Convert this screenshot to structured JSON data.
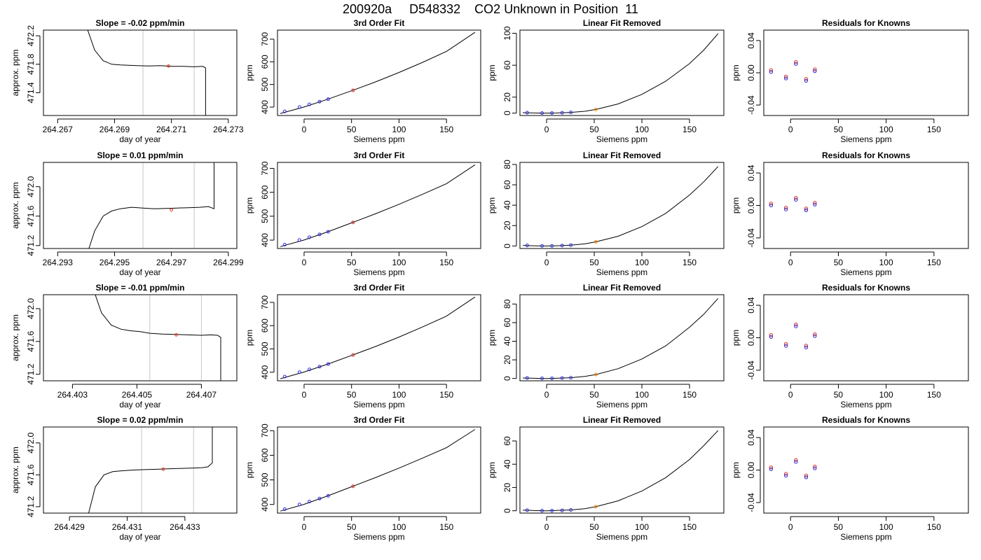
{
  "title": "200920a     D548332    CO2 Unknown in Position  11",
  "chart_data": [
    {
      "type": "line",
      "kind": "time",
      "row": 0,
      "title": "Slope =  -0.02  ppm/min",
      "xlabel": "day of year",
      "ylabel": "approx. ppm",
      "xlim": [
        264.2665,
        264.2733
      ],
      "ylim": [
        471.08,
        472.28
      ],
      "xticks": [
        264.267,
        264.269,
        264.271,
        264.273
      ],
      "xtick_labels": [
        "264.267",
        "264.269",
        "264.271",
        "264.273"
      ],
      "yticks": [
        471.4,
        471.8,
        472.2
      ],
      "ytick_labels": [
        "471.4",
        "471.8",
        "472.2"
      ],
      "vlines": [
        264.27,
        264.2718
      ],
      "red_marker": [
        264.2709,
        471.775
      ],
      "x": [
        264.26795,
        264.2683,
        264.2686,
        264.2689,
        264.2692,
        264.2695,
        264.2698,
        264.2702,
        264.2706,
        264.271,
        264.2714,
        264.2718,
        264.2721,
        264.2722,
        264.2722,
        264.2722
      ],
      "y": [
        472.4,
        472.0,
        471.85,
        471.8,
        471.79,
        471.785,
        471.78,
        471.775,
        471.78,
        471.77,
        471.77,
        471.765,
        471.77,
        471.75,
        471.4,
        471.05
      ]
    },
    {
      "type": "line",
      "kind": "fit3",
      "row": 0,
      "title": "3rd Order Fit",
      "xlabel": "Siemens ppm",
      "ylabel": "ppm",
      "xlim": [
        -28,
        186
      ],
      "ylim": [
        363,
        740
      ],
      "xticks": [
        0,
        50,
        100,
        150
      ],
      "xtick_labels": [
        "0",
        "50",
        "100",
        "150"
      ],
      "yticks": [
        400,
        500,
        600,
        700
      ],
      "ytick_labels": [
        "400",
        "500",
        "600",
        "700"
      ],
      "x": [
        -25,
        0,
        25,
        50,
        75,
        100,
        125,
        150,
        180
      ],
      "y": [
        372,
        400.5,
        435,
        472,
        511,
        553,
        598,
        646,
        730
      ],
      "knowns_x": [
        -20.4,
        -4.8,
        5.6,
        16.3,
        25.4
      ],
      "knowns_y": [
        381,
        400,
        412,
        424,
        435
      ],
      "unknown": [
        51.6,
        474
      ]
    },
    {
      "type": "line",
      "kind": "linrem",
      "row": 0,
      "title": "Linear Fit Removed",
      "xlabel": "Siemens ppm",
      "ylabel": "ppm",
      "xlim": [
        -28,
        186
      ],
      "ylim": [
        -3,
        104
      ],
      "xticks": [
        0,
        50,
        100,
        150
      ],
      "xtick_labels": [
        "0",
        "50",
        "100",
        "150"
      ],
      "yticks": [
        0,
        20,
        60,
        100
      ],
      "ytick_labels": [
        "0",
        "20",
        "60",
        "100"
      ],
      "x": [
        -25,
        -10,
        0,
        10,
        25,
        40,
        51.6,
        75,
        100,
        125,
        150,
        165,
        180
      ],
      "y": [
        0.5,
        0.1,
        0,
        0.2,
        0.9,
        2.3,
        4.5,
        11.5,
        23.5,
        40,
        62,
        79,
        99.5
      ],
      "knowns_x": [
        -20.4,
        -4.8,
        5.6,
        16.3,
        25.4
      ],
      "knowns_y": [
        0.5,
        0.1,
        0.1,
        0.4,
        0.9
      ],
      "unknown": [
        51.6,
        4.5
      ]
    },
    {
      "type": "scatter",
      "kind": "resid",
      "row": 0,
      "title": "Residuals for Knowns",
      "xlabel": "Siemens ppm",
      "ylabel": "ppm",
      "xlim": [
        -28,
        186
      ],
      "ylim": [
        -0.053,
        0.053
      ],
      "xticks": [
        0,
        50,
        100,
        150
      ],
      "xtick_labels": [
        "0",
        "50",
        "100",
        "150"
      ],
      "yticks": [
        -0.04,
        0.0,
        0.04
      ],
      "ytick_labels": [
        "-0.04",
        "0.00",
        "0.04"
      ],
      "x": [
        -20.4,
        -4.8,
        5.6,
        16.3,
        25.4
      ],
      "y": [
        0.002,
        -0.006,
        0.012,
        -0.009,
        0.003
      ]
    },
    {
      "type": "line",
      "kind": "time",
      "row": 1,
      "title": "Slope =  0.01  ppm/min",
      "xlabel": "day of year",
      "ylabel": "approx. ppm",
      "xlim": [
        264.2925,
        264.2993
      ],
      "ylim": [
        471.16,
        472.33
      ],
      "xticks": [
        264.293,
        264.295,
        264.297,
        264.299
      ],
      "xtick_labels": [
        "264.293",
        "264.295",
        "264.297",
        "264.299"
      ],
      "yticks": [
        471.2,
        471.6,
        472.0
      ],
      "ytick_labels": [
        "471.2",
        "471.6",
        "472.0"
      ],
      "vlines": [
        264.296,
        264.2978
      ],
      "red_marker": [
        264.297,
        471.685
      ],
      "x": [
        264.2941,
        264.2943,
        264.2946,
        264.2949,
        264.2952,
        264.2956,
        264.296,
        264.2964,
        264.2968,
        264.2972,
        264.2976,
        264.298,
        264.2983,
        264.2985,
        264.2985,
        264.2985
      ],
      "y": [
        471.16,
        471.4,
        471.6,
        471.67,
        471.7,
        471.72,
        471.71,
        471.7,
        471.705,
        471.71,
        471.715,
        471.72,
        471.73,
        471.7,
        472.0,
        472.35
      ]
    },
    {
      "type": "line",
      "kind": "fit3",
      "row": 1,
      "title": "3rd Order Fit",
      "xlabel": "Siemens ppm",
      "ylabel": "ppm",
      "xlim": [
        -28,
        186
      ],
      "ylim": [
        365,
        725
      ],
      "xticks": [
        0,
        50,
        100,
        150
      ],
      "xtick_labels": [
        "0",
        "50",
        "100",
        "150"
      ],
      "yticks": [
        400,
        500,
        600,
        700
      ],
      "ytick_labels": [
        "400",
        "500",
        "600",
        "700"
      ],
      "x": [
        -25,
        0,
        25,
        50,
        75,
        100,
        125,
        150,
        180
      ],
      "y": [
        373,
        400.5,
        435,
        472,
        510,
        550,
        592,
        636,
        715
      ],
      "knowns_x": [
        -20.4,
        -4.8,
        5.6,
        16.3,
        25.4
      ],
      "knowns_y": [
        381,
        400,
        412,
        424,
        435
      ],
      "unknown": [
        51.6,
        474
      ]
    },
    {
      "type": "line",
      "kind": "linrem",
      "row": 1,
      "title": "Linear Fit Removed",
      "xlabel": "Siemens ppm",
      "ylabel": "ppm",
      "xlim": [
        -28,
        186
      ],
      "ylim": [
        -2.5,
        82
      ],
      "xticks": [
        0,
        50,
        100,
        150
      ],
      "xtick_labels": [
        "0",
        "50",
        "100",
        "150"
      ],
      "yticks": [
        0,
        20,
        40,
        60,
        80
      ],
      "ytick_labels": [
        "0",
        "20",
        "40",
        "60",
        "80"
      ],
      "x": [
        -25,
        -10,
        0,
        10,
        25,
        40,
        51.6,
        75,
        100,
        125,
        150,
        165,
        180
      ],
      "y": [
        0.5,
        0.1,
        0,
        0.2,
        0.8,
        2,
        4,
        9.5,
        19,
        32,
        50,
        63,
        78
      ],
      "knowns_x": [
        -20.4,
        -4.8,
        5.6,
        16.3,
        25.4
      ],
      "knowns_y": [
        0.5,
        0.1,
        0.1,
        0.4,
        0.8
      ],
      "unknown": [
        51.6,
        4
      ]
    },
    {
      "type": "scatter",
      "kind": "resid",
      "row": 1,
      "title": "Residuals for Knowns",
      "xlabel": "Siemens ppm",
      "ylabel": "ppm",
      "xlim": [
        -28,
        186
      ],
      "ylim": [
        -0.053,
        0.053
      ],
      "xticks": [
        0,
        50,
        100,
        150
      ],
      "xtick_labels": [
        "0",
        "50",
        "100",
        "150"
      ],
      "yticks": [
        -0.04,
        0.0,
        0.04
      ],
      "ytick_labels": [
        "-0.04",
        "0.00",
        "0.04"
      ],
      "x": [
        -20.4,
        -4.8,
        5.6,
        16.3,
        25.4
      ],
      "y": [
        0.001,
        -0.004,
        0.008,
        -0.005,
        0.002
      ]
    },
    {
      "type": "line",
      "kind": "time",
      "row": 2,
      "title": "Slope =  -0.01  ppm/min",
      "xlabel": "day of year",
      "ylabel": "approx. ppm",
      "xlim": [
        264.4021,
        264.4081
      ],
      "ylim": [
        471.12,
        472.17
      ],
      "xticks": [
        264.403,
        264.405,
        264.407
      ],
      "xtick_labels": [
        "264.403",
        "264.405",
        "264.407"
      ],
      "yticks": [
        471.2,
        471.6,
        472.0
      ],
      "ytick_labels": [
        "471.2",
        "471.6",
        "472.0"
      ],
      "vlines": [
        264.4054,
        264.407
      ],
      "red_marker": [
        264.40622,
        471.68
      ],
      "x": [
        264.40355,
        264.4039,
        264.4042,
        264.4045,
        264.4048,
        264.4051,
        264.4054,
        264.4058,
        264.4062,
        264.4066,
        264.407,
        264.4073,
        264.4075,
        264.4076,
        264.4076,
        264.4076
      ],
      "y": [
        472.35,
        471.95,
        471.8,
        471.75,
        471.73,
        471.72,
        471.7,
        471.69,
        471.685,
        471.68,
        471.675,
        471.68,
        471.675,
        471.65,
        471.4,
        471.1
      ]
    },
    {
      "type": "line",
      "kind": "fit3",
      "row": 2,
      "title": "3rd Order Fit",
      "xlabel": "Siemens ppm",
      "ylabel": "ppm",
      "xlim": [
        -28,
        186
      ],
      "ylim": [
        363,
        733
      ],
      "xticks": [
        0,
        50,
        100,
        150
      ],
      "xtick_labels": [
        "0",
        "50",
        "100",
        "150"
      ],
      "yticks": [
        400,
        500,
        600,
        700
      ],
      "ytick_labels": [
        "400",
        "500",
        "600",
        "700"
      ],
      "x": [
        -25,
        0,
        25,
        50,
        75,
        100,
        125,
        150,
        180
      ],
      "y": [
        372,
        400.5,
        435,
        472,
        510,
        551,
        595,
        641,
        723
      ],
      "knowns_x": [
        -20.4,
        -4.8,
        5.6,
        16.3,
        25.4
      ],
      "knowns_y": [
        381,
        400,
        412,
        424,
        435
      ],
      "unknown": [
        51.6,
        474
      ]
    },
    {
      "type": "line",
      "kind": "linrem",
      "row": 2,
      "title": "Linear Fit Removed",
      "xlabel": "Siemens ppm",
      "ylabel": "ppm",
      "xlim": [
        -28,
        186
      ],
      "ylim": [
        -2.5,
        90
      ],
      "xticks": [
        0,
        50,
        100,
        150
      ],
      "xtick_labels": [
        "0",
        "50",
        "100",
        "150"
      ],
      "yticks": [
        0,
        20,
        40,
        60,
        80
      ],
      "ytick_labels": [
        "0",
        "20",
        "40",
        "60",
        "80"
      ],
      "x": [
        -25,
        -10,
        0,
        10,
        25,
        40,
        51.6,
        75,
        100,
        125,
        150,
        165,
        180
      ],
      "y": [
        0.5,
        0.1,
        0,
        0.2,
        0.8,
        2.2,
        4.2,
        10.5,
        21,
        35,
        55,
        69,
        86
      ],
      "knowns_x": [
        -20.4,
        -4.8,
        5.6,
        16.3,
        25.4
      ],
      "knowns_y": [
        0.5,
        0.1,
        0.1,
        0.4,
        0.8
      ],
      "unknown": [
        51.6,
        4.2
      ]
    },
    {
      "type": "scatter",
      "kind": "resid",
      "row": 2,
      "title": "Residuals for Knowns",
      "xlabel": "Siemens ppm",
      "ylabel": "ppm",
      "xlim": [
        -28,
        186
      ],
      "ylim": [
        -0.053,
        0.053
      ],
      "xticks": [
        0,
        50,
        100,
        150
      ],
      "xtick_labels": [
        "0",
        "50",
        "100",
        "150"
      ],
      "yticks": [
        -0.04,
        0.0,
        0.04
      ],
      "ytick_labels": [
        "-0.04",
        "0.00",
        "0.04"
      ],
      "x": [
        -20.4,
        -4.8,
        5.6,
        16.3,
        25.4
      ],
      "y": [
        0.002,
        -0.009,
        0.015,
        -0.011,
        0.003
      ]
    },
    {
      "type": "line",
      "kind": "time",
      "row": 3,
      "title": "Slope =  0.02  ppm/min",
      "xlabel": "day of year",
      "ylabel": "approx. ppm",
      "xlim": [
        264.4281,
        264.4348
      ],
      "ylim": [
        471.12,
        472.2
      ],
      "xticks": [
        264.429,
        264.431,
        264.433
      ],
      "xtick_labels": [
        "264.429",
        "264.431",
        "264.433"
      ],
      "yticks": [
        471.2,
        471.6,
        472.0
      ],
      "ytick_labels": [
        "471.2",
        "471.6",
        "472.0"
      ],
      "vlines": [
        264.4315,
        264.4333
      ],
      "red_marker": [
        264.43225,
        471.67
      ],
      "x": [
        264.42965,
        264.4299,
        264.4302,
        264.4305,
        264.4308,
        264.4312,
        264.4316,
        264.432,
        264.4324,
        264.4328,
        264.4332,
        264.4336,
        264.4338,
        264.43395,
        264.43395,
        264.43395
      ],
      "y": [
        471.1,
        471.45,
        471.6,
        471.64,
        471.65,
        471.66,
        471.665,
        471.67,
        471.675,
        471.68,
        471.685,
        471.69,
        471.7,
        471.75,
        472.0,
        472.35
      ]
    },
    {
      "type": "line",
      "kind": "fit3",
      "row": 3,
      "title": "3rd Order Fit",
      "xlabel": "Siemens ppm",
      "ylabel": "ppm",
      "xlim": [
        -28,
        186
      ],
      "ylim": [
        365,
        715
      ],
      "xticks": [
        0,
        50,
        100,
        150
      ],
      "xtick_labels": [
        "0",
        "50",
        "100",
        "150"
      ],
      "yticks": [
        400,
        500,
        600,
        700
      ],
      "ytick_labels": [
        "400",
        "500",
        "600",
        "700"
      ],
      "x": [
        -25,
        0,
        25,
        50,
        75,
        100,
        125,
        150,
        180
      ],
      "y": [
        373,
        400.5,
        435,
        472,
        509,
        548,
        589,
        631,
        705
      ],
      "knowns_x": [
        -20.4,
        -4.8,
        5.6,
        16.3,
        25.4
      ],
      "knowns_y": [
        381,
        400,
        412,
        424,
        435
      ],
      "unknown": [
        51.6,
        474
      ]
    },
    {
      "type": "line",
      "kind": "linrem",
      "row": 3,
      "title": "Linear Fit Removed",
      "xlabel": "Siemens ppm",
      "ylabel": "ppm",
      "xlim": [
        -28,
        186
      ],
      "ylim": [
        -2,
        72
      ],
      "xticks": [
        0,
        50,
        100,
        150
      ],
      "xtick_labels": [
        "0",
        "50",
        "100",
        "150"
      ],
      "yticks": [
        0,
        20,
        40,
        60
      ],
      "ytick_labels": [
        "0",
        "20",
        "40",
        "60"
      ],
      "x": [
        -25,
        -10,
        0,
        10,
        25,
        40,
        51.6,
        75,
        100,
        125,
        150,
        165,
        180
      ],
      "y": [
        0.5,
        0.1,
        0,
        0.2,
        0.7,
        1.8,
        3.5,
        8.5,
        17,
        28.5,
        44,
        56,
        69
      ],
      "knowns_x": [
        -20.4,
        -4.8,
        5.6,
        16.3,
        25.4
      ],
      "knowns_y": [
        0.5,
        0.1,
        0.1,
        0.3,
        0.7
      ],
      "unknown": [
        51.6,
        3.5
      ]
    },
    {
      "type": "scatter",
      "kind": "resid",
      "row": 3,
      "title": "Residuals for Knowns",
      "xlabel": "Siemens ppm",
      "ylabel": "ppm",
      "xlim": [
        -28,
        186
      ],
      "ylim": [
        -0.053,
        0.053
      ],
      "xticks": [
        0,
        50,
        100,
        150
      ],
      "xtick_labels": [
        "0",
        "50",
        "100",
        "150"
      ],
      "yticks": [
        -0.04,
        0.0,
        0.04
      ],
      "ytick_labels": [
        "-0.04",
        "0.00",
        "0.04"
      ],
      "x": [
        -20.4,
        -4.8,
        5.6,
        16.3,
        25.4
      ],
      "y": [
        0.002,
        -0.006,
        0.011,
        -0.008,
        0.003
      ]
    }
  ]
}
